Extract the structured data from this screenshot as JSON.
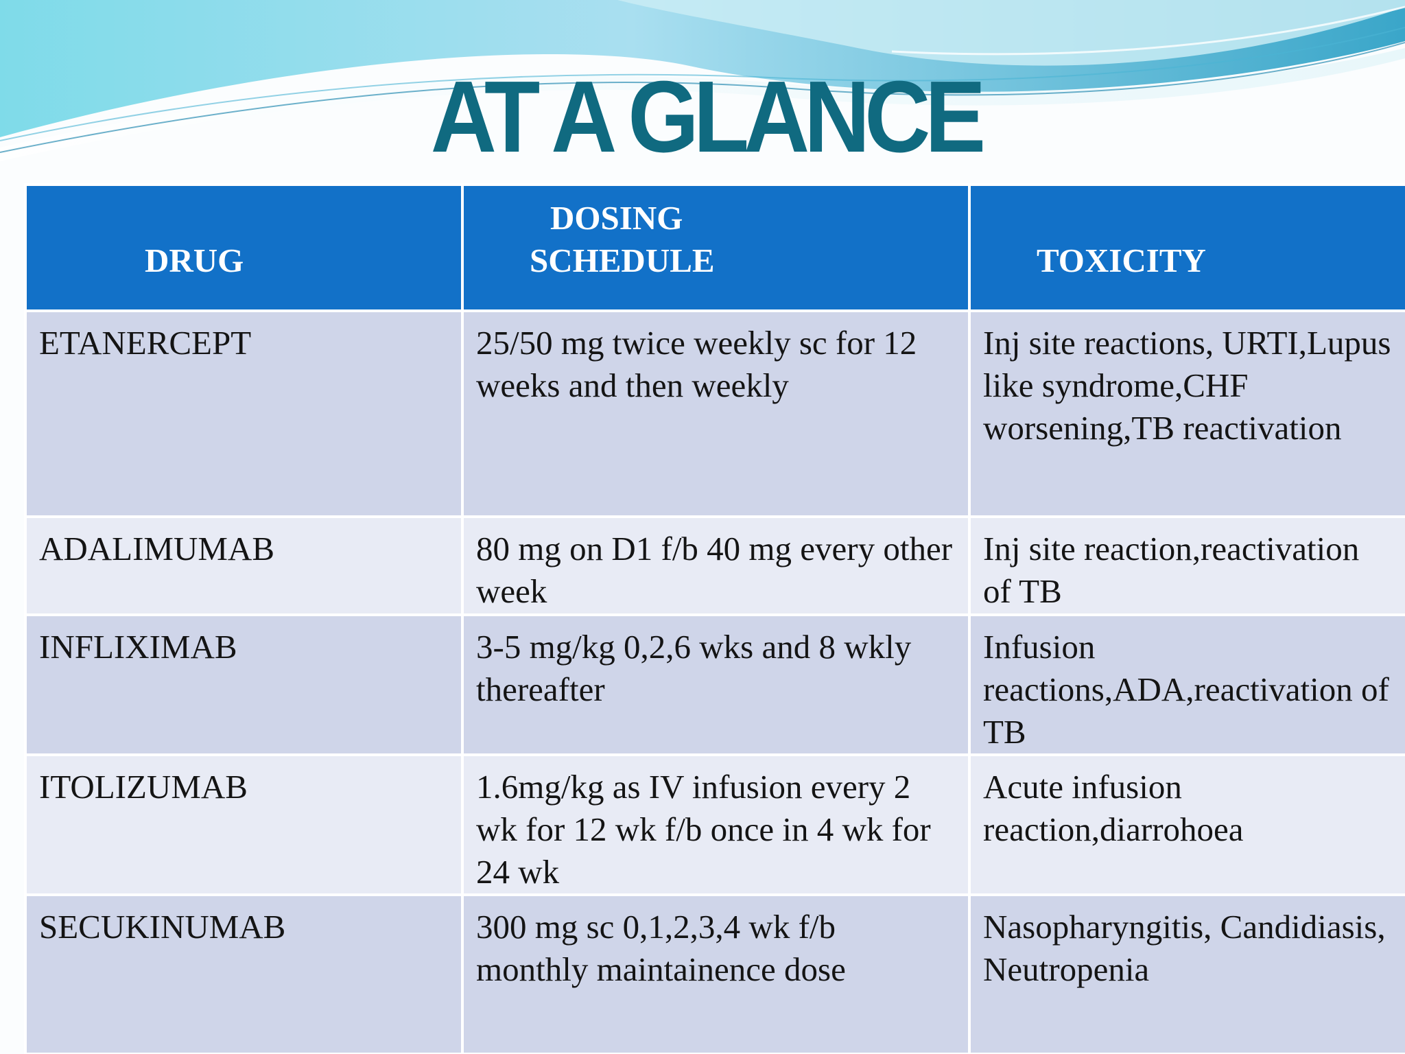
{
  "slide": {
    "title": "AT A GLANCE",
    "colors": {
      "title": "#106a80",
      "header_bg": "#1271c8",
      "row_odd_bg": "#cfd5e9",
      "row_even_bg": "#e8ebf5",
      "wave_light": "#c9ecf5",
      "wave_mid": "#7fd3e8",
      "wave_dark": "#3aa6c9"
    }
  },
  "table": {
    "headers": {
      "drug": "DRUG",
      "dosing_line1": "DOSING",
      "dosing_line2": "SCHEDULE",
      "toxicity": "TOXICITY"
    },
    "rows": [
      {
        "drug": "ETANERCEPT",
        "dosing": "25/50 mg twice weekly sc for 12 weeks and then weekly",
        "toxicity": "Inj site reactions, URTI,Lupus like syndrome,CHF worsening,TB reactivation"
      },
      {
        "drug": "ADALIMUMAB",
        "dosing": "80 mg on D1 f/b 40 mg every other week",
        "toxicity": "Inj site reaction,reactivation of TB"
      },
      {
        "drug": "INFLIXIMAB",
        "dosing": "3-5 mg/kg 0,2,6 wks and 8 wkly thereafter",
        "toxicity": "Infusion reactions,ADA,reactivation of TB"
      },
      {
        "drug": "ITOLIZUMAB",
        "dosing": "1.6mg/kg as IV infusion every 2 wk for 12 wk f/b once in 4 wk for 24 wk",
        "toxicity": "Acute infusion reaction,diarrohoea"
      },
      {
        "drug": "SECUKINUMAB",
        "dosing": "300 mg sc 0,1,2,3,4 wk f/b monthly maintainence dose",
        "toxicity": "Nasopharyngitis, Candidiasis, Neutropenia"
      }
    ]
  }
}
